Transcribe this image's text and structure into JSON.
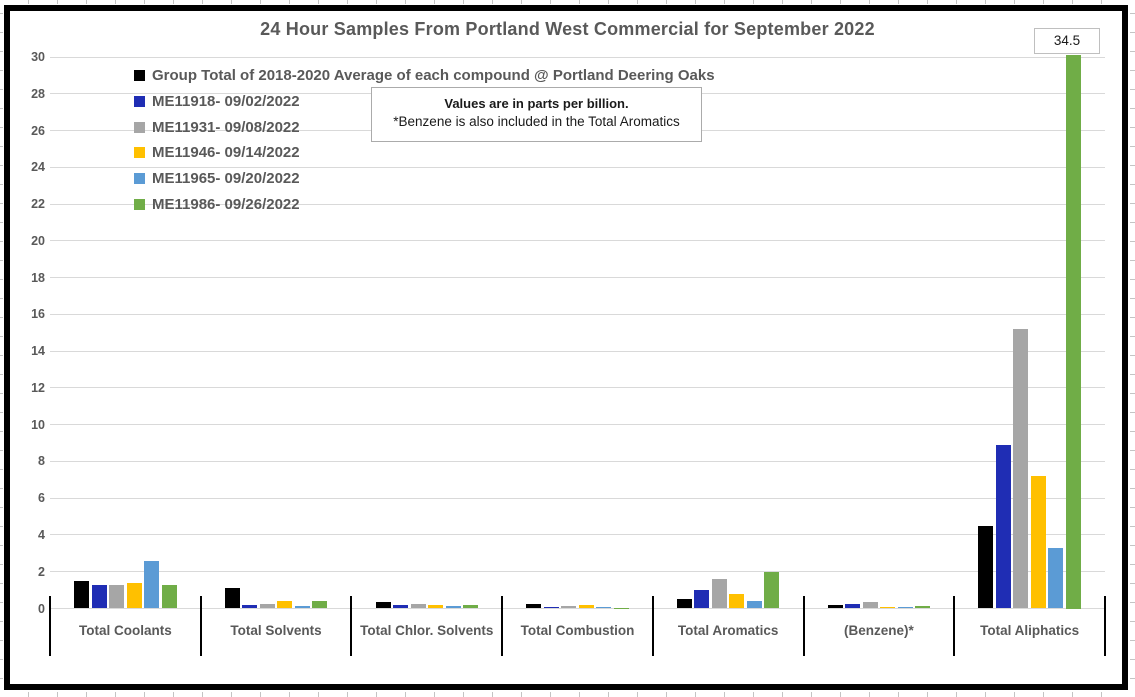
{
  "chart_data": {
    "type": "bar",
    "title": "24 Hour Samples From Portland West Commercial for September 2022",
    "note_line1": "Values are in parts per billion.",
    "note_line2": "*Benzene is also included in the Total Aromatics",
    "units": "parts per billion",
    "categories": [
      "Total Coolants",
      "Total Solvents",
      "Total Chlor. Solvents",
      "Total Combustion",
      "Total Aromatics",
      "(Benzene)*",
      "Total Aliphatics"
    ],
    "series": [
      {
        "name": "Group Total of 2018-2020 Average of each compound @ Portland Deering Oaks",
        "color": "#000000",
        "values": [
          1.5,
          1.1,
          0.35,
          0.25,
          0.5,
          0.2,
          4.5
        ]
      },
      {
        "name": "ME11918- 09/02/2022",
        "color": "#1f2db4",
        "values": [
          1.3,
          0.2,
          0.2,
          0.1,
          1.0,
          0.25,
          8.9
        ]
      },
      {
        "name": "ME11931- 09/08/2022",
        "color": "#a6a6a6",
        "values": [
          1.3,
          0.25,
          0.25,
          0.15,
          1.6,
          0.35,
          15.2
        ]
      },
      {
        "name": "ME11946- 09/14/2022",
        "color": "#ffc000",
        "values": [
          1.4,
          0.4,
          0.2,
          0.2,
          0.8,
          0.1,
          7.2
        ]
      },
      {
        "name": "ME11965- 09/20/2022",
        "color": "#5b9bd5",
        "values": [
          2.6,
          0.15,
          0.15,
          0.1,
          0.4,
          0.1,
          3.3
        ]
      },
      {
        "name": "ME11986- 09/26/2022",
        "color": "#70ad47",
        "values": [
          1.3,
          0.4,
          0.2,
          0.05,
          2.0,
          0.15,
          34.5
        ]
      }
    ],
    "ylim": [
      0,
      30
    ],
    "y_tick_step": 2,
    "grid": true,
    "legend_position": "top-left",
    "data_label": {
      "text": "34.5",
      "series_index": 5,
      "category_index": 6
    },
    "colors": {
      "gridline": "#d9d9d9",
      "axis_text": "#595959",
      "title_text": "#595959",
      "chart_border": "#000000"
    }
  }
}
